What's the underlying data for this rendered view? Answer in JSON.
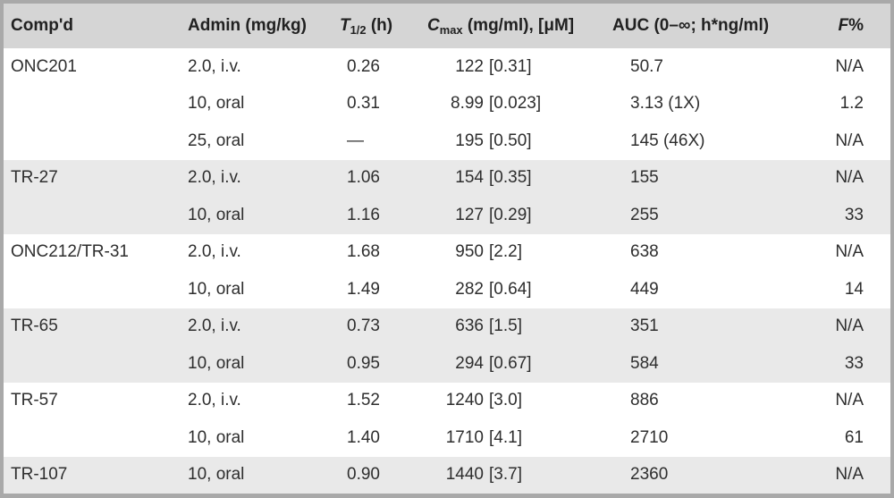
{
  "table": {
    "header": {
      "compd": "Comp'd",
      "admin": "Admin (mg/kg)",
      "t_half": {
        "italic": "T",
        "sub": "1/2",
        "rest": " (h)"
      },
      "cmax": {
        "italic": "C",
        "sub": "max",
        "rest": " (mg/ml), [μM]"
      },
      "auc": "AUC (0–∞; h*ng/ml)",
      "f": {
        "italic": "F",
        "rest": "%"
      }
    },
    "rows": [
      {
        "compound": "ONC201",
        "admin": "2.0, i.v.",
        "t_half": "0.26",
        "cmax_num": "122",
        "cmax_bracket": "[0.31]",
        "auc": "50.7",
        "f": "N/A",
        "shaded": false
      },
      {
        "compound": "",
        "admin": "10, oral",
        "t_half": "0.31",
        "cmax_num": "8.99",
        "cmax_bracket": "[0.023]",
        "auc": "3.13 (1X)",
        "f": "1.2",
        "shaded": false
      },
      {
        "compound": "",
        "admin": "25, oral",
        "t_half": "—",
        "cmax_num": "195",
        "cmax_bracket": "[0.50]",
        "auc": "145 (46X)",
        "f": "N/A",
        "shaded": false
      },
      {
        "compound": "TR-27",
        "admin": "2.0, i.v.",
        "t_half": "1.06",
        "cmax_num": "154",
        "cmax_bracket": "[0.35]",
        "auc": "155",
        "f": "N/A",
        "shaded": true
      },
      {
        "compound": "",
        "admin": "10, oral",
        "t_half": "1.16",
        "cmax_num": "127",
        "cmax_bracket": "[0.29]",
        "auc": "255",
        "f": "33",
        "shaded": true
      },
      {
        "compound": "ONC212/TR-31",
        "admin": "2.0, i.v.",
        "t_half": "1.68",
        "cmax_num": "950",
        "cmax_bracket": "[2.2]",
        "auc": "638",
        "f": "N/A",
        "shaded": false
      },
      {
        "compound": "",
        "admin": "10, oral",
        "t_half": "1.49",
        "cmax_num": "282",
        "cmax_bracket": "[0.64]",
        "auc": "449",
        "f": "14",
        "shaded": false
      },
      {
        "compound": "TR-65",
        "admin": "2.0, i.v.",
        "t_half": "0.73",
        "cmax_num": "636",
        "cmax_bracket": "[1.5]",
        "auc": "351",
        "f": "N/A",
        "shaded": true
      },
      {
        "compound": "",
        "admin": "10, oral",
        "t_half": "0.95",
        "cmax_num": "294",
        "cmax_bracket": "[0.67]",
        "auc": "584",
        "f": "33",
        "shaded": true
      },
      {
        "compound": "TR-57",
        "admin": "2.0, i.v.",
        "t_half": "1.52",
        "cmax_num": "1240",
        "cmax_bracket": "[3.0]",
        "auc": "886",
        "f": "N/A",
        "shaded": false
      },
      {
        "compound": "",
        "admin": "10, oral",
        "t_half": "1.40",
        "cmax_num": "1710",
        "cmax_bracket": "[4.1]",
        "auc": "2710",
        "f": "61",
        "shaded": false
      },
      {
        "compound": "TR-107",
        "admin": "10, oral",
        "t_half": "0.90",
        "cmax_num": "1440",
        "cmax_bracket": "[3.7]",
        "auc": "2360",
        "f": "N/A",
        "shaded": true
      }
    ],
    "colors": {
      "header_bg": "#d5d5d5",
      "stripe_bg": "#e9e9e9",
      "frame_border": "#a9a9a9",
      "text": "#2e2e2e"
    }
  }
}
